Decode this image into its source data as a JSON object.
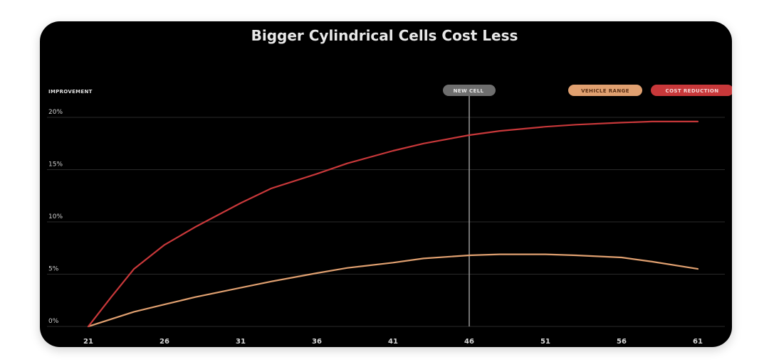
{
  "chart_data": {
    "type": "line",
    "title": "Bigger Cylindrical Cells Cost Less",
    "ylabel": "IMPROVEMENT",
    "xlabel": "",
    "x_ticks": [
      21,
      26,
      31,
      36,
      41,
      46,
      51,
      56,
      61
    ],
    "y_ticks": [
      "0%",
      "5%",
      "10%",
      "15%",
      "20%"
    ],
    "y_tick_values": [
      0,
      5,
      10,
      15,
      20
    ],
    "xlim": [
      21,
      61
    ],
    "ylim": [
      0,
      20
    ],
    "grid": true,
    "legend_placement": "top-right",
    "marker_line": {
      "x": 46,
      "label": "NEW CELL"
    },
    "series": [
      {
        "name": "VEHICLE RANGE",
        "color": "#e0a070",
        "x": [
          21,
          24,
          26,
          28,
          31,
          33,
          36,
          38,
          41,
          43,
          46,
          48,
          51,
          53,
          56,
          58,
          61
        ],
        "y": [
          0,
          1.4,
          2.1,
          2.8,
          3.7,
          4.3,
          5.1,
          5.6,
          6.1,
          6.5,
          6.8,
          6.9,
          6.9,
          6.8,
          6.6,
          6.2,
          5.5
        ]
      },
      {
        "name": "COST REDUCTION",
        "color": "#c8383a",
        "x": [
          21,
          22.5,
          24,
          26,
          28,
          31,
          33,
          36,
          38,
          41,
          43,
          46,
          48,
          51,
          53,
          56,
          58,
          61
        ],
        "y": [
          0,
          2.8,
          5.5,
          7.8,
          9.5,
          11.8,
          13.2,
          14.6,
          15.6,
          16.8,
          17.5,
          18.3,
          18.7,
          19.1,
          19.3,
          19.5,
          19.6,
          19.6
        ]
      }
    ]
  }
}
